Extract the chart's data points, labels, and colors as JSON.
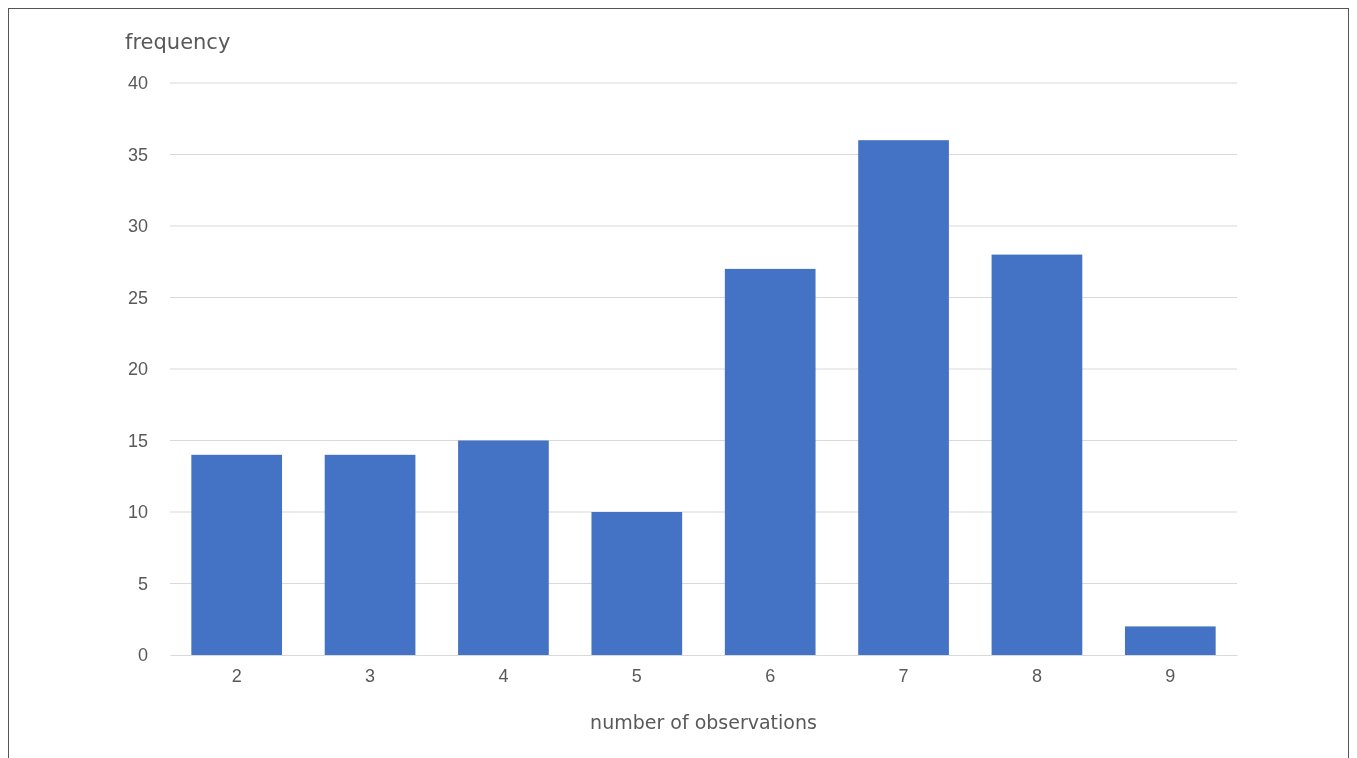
{
  "chart_data": {
    "type": "bar",
    "xlabel": "number of observations",
    "ylabel": "frequency",
    "categories": [
      "2",
      "3",
      "4",
      "5",
      "6",
      "7",
      "8",
      "9"
    ],
    "values": [
      14,
      14,
      15,
      10,
      27,
      36,
      28,
      2
    ],
    "color": "#4472c4",
    "ylim": [
      0,
      40
    ],
    "yticks": [
      0,
      5,
      10,
      15,
      20,
      25,
      30,
      35,
      40
    ],
    "grid": "y"
  }
}
